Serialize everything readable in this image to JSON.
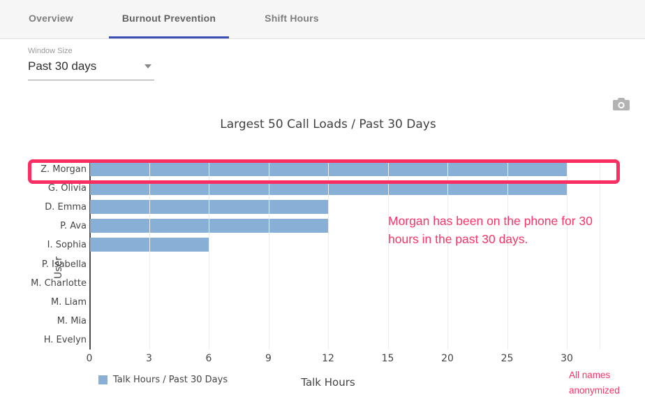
{
  "tabs": [
    {
      "label": "Overview",
      "active": false
    },
    {
      "label": "Burnout Prevention",
      "active": true
    },
    {
      "label": "Shift Hours",
      "active": false
    }
  ],
  "controls": {
    "window_size": {
      "label": "Window Size",
      "value": "Past 30 days"
    }
  },
  "chart_data": {
    "type": "bar",
    "orientation": "horizontal",
    "title": "Largest 50 Call Loads / Past 30 Days",
    "categories": [
      "Z. Morgan",
      "G. Olivia",
      "D. Emma",
      "P. Ava",
      "I. Sophia",
      "P. Isabella",
      "M. Charlotte",
      "M. Liam",
      "M. Mia",
      "H. Evelyn"
    ],
    "values": [
      30,
      30,
      12,
      12,
      6,
      0,
      0,
      0,
      0,
      0
    ],
    "x_ticks": [
      0,
      3,
      6,
      9,
      12,
      15,
      20,
      25,
      30
    ],
    "xlabel": "Talk Hours",
    "ylabel": "User",
    "legend_label": "Talk Hours / Past 30 Days",
    "legend_position": "bottom-left",
    "grid": true,
    "bar_color": "#88afd6"
  },
  "annotations": {
    "note": {
      "line1": "Morgan has been on the phone for 30",
      "line2": "hours in the past 30 days."
    },
    "footnote": {
      "line1": "All names",
      "line2": "anonymized"
    }
  },
  "colors": {
    "highlight_pink": "#fb3366",
    "tab_accent": "#3c50b4",
    "bar_blue": "#88afd6"
  }
}
